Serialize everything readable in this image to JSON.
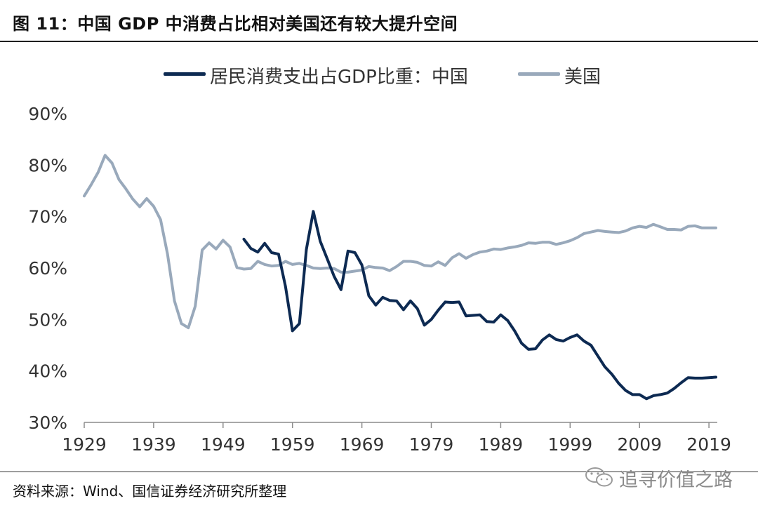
{
  "header": {
    "title": "图 11：中国 GDP 中消费占比相对美国还有较大提升空间"
  },
  "footer": {
    "source": "资料来源：Wind、国信证券经济研究所整理",
    "watermark": "追寻价值之路"
  },
  "chart_data": {
    "type": "line",
    "title": "",
    "xlabel": "",
    "ylabel": "",
    "xlim": [
      1929,
      2020
    ],
    "ylim": [
      30,
      90
    ],
    "grid": false,
    "legend_position": "top",
    "x_ticks": [
      "1929",
      "1939",
      "1949",
      "1959",
      "1969",
      "1979",
      "1989",
      "1999",
      "2009",
      "2019"
    ],
    "y_ticks": [
      "30%",
      "40%",
      "50%",
      "60%",
      "70%",
      "80%",
      "90%"
    ],
    "series": [
      {
        "name": "居民消费支出占GDP比重：中国",
        "color": "#0d2a52",
        "x": [
          1952,
          1953,
          1954,
          1955,
          1956,
          1957,
          1958,
          1959,
          1960,
          1961,
          1962,
          1963,
          1964,
          1965,
          1966,
          1967,
          1968,
          1969,
          1970,
          1971,
          1972,
          1973,
          1974,
          1975,
          1976,
          1977,
          1978,
          1979,
          1980,
          1981,
          1982,
          1983,
          1984,
          1985,
          1986,
          1987,
          1988,
          1989,
          1990,
          1991,
          1992,
          1993,
          1994,
          1995,
          1996,
          1997,
          1998,
          1999,
          2000,
          2001,
          2002,
          2003,
          2004,
          2005,
          2006,
          2007,
          2008,
          2009,
          2010,
          2011,
          2012,
          2013,
          2014,
          2015,
          2016,
          2017,
          2018,
          2019,
          2020
        ],
        "values": [
          65.6,
          63.8,
          63.1,
          64.8,
          63.0,
          62.7,
          56.4,
          47.8,
          49.2,
          63.6,
          71.0,
          65.2,
          61.8,
          58.4,
          55.8,
          63.3,
          63.0,
          60.6,
          54.6,
          52.8,
          54.3,
          53.7,
          53.6,
          51.9,
          53.6,
          52.1,
          48.9,
          50.0,
          51.8,
          53.4,
          53.3,
          53.4,
          50.7,
          50.8,
          50.9,
          49.6,
          49.5,
          50.9,
          49.8,
          47.8,
          45.4,
          44.2,
          44.3,
          46.0,
          47.0,
          46.1,
          45.8,
          46.5,
          47.0,
          45.8,
          45.0,
          42.9,
          40.8,
          39.4,
          37.6,
          36.2,
          35.4,
          35.4,
          34.6,
          35.2,
          35.4,
          35.7,
          36.6,
          37.7,
          38.7,
          38.6,
          38.6,
          38.7,
          38.8
        ]
      },
      {
        "name": "美国",
        "color": "#99a9bb",
        "x": [
          1929,
          1930,
          1931,
          1932,
          1933,
          1934,
          1935,
          1936,
          1937,
          1938,
          1939,
          1940,
          1941,
          1942,
          1943,
          1944,
          1945,
          1946,
          1947,
          1948,
          1949,
          1950,
          1951,
          1952,
          1953,
          1954,
          1955,
          1956,
          1957,
          1958,
          1959,
          1960,
          1961,
          1962,
          1963,
          1964,
          1965,
          1966,
          1967,
          1968,
          1969,
          1970,
          1971,
          1972,
          1973,
          1974,
          1975,
          1976,
          1977,
          1978,
          1979,
          1980,
          1981,
          1982,
          1983,
          1984,
          1985,
          1986,
          1987,
          1988,
          1989,
          1990,
          1991,
          1992,
          1993,
          1994,
          1995,
          1996,
          1997,
          1998,
          1999,
          2000,
          2001,
          2002,
          2003,
          2004,
          2005,
          2006,
          2007,
          2008,
          2009,
          2010,
          2011,
          2012,
          2013,
          2014,
          2015,
          2016,
          2017,
          2018,
          2019,
          2020
        ],
        "values": [
          74.0,
          76.2,
          78.6,
          81.9,
          80.4,
          77.2,
          75.4,
          73.4,
          71.9,
          73.5,
          72.0,
          69.4,
          62.7,
          53.6,
          49.2,
          48.4,
          52.6,
          63.5,
          64.9,
          63.7,
          65.4,
          64.1,
          60.1,
          59.8,
          59.9,
          61.3,
          60.7,
          60.4,
          60.5,
          61.3,
          60.7,
          60.9,
          60.5,
          60.0,
          59.9,
          60.0,
          59.9,
          59.2,
          59.2,
          59.4,
          59.6,
          60.3,
          60.1,
          60.0,
          59.5,
          60.3,
          61.3,
          61.3,
          61.1,
          60.5,
          60.4,
          61.2,
          60.5,
          62.0,
          62.8,
          61.9,
          62.6,
          63.1,
          63.3,
          63.7,
          63.6,
          63.9,
          64.1,
          64.4,
          64.9,
          64.8,
          65.0,
          65.0,
          64.6,
          64.9,
          65.3,
          65.9,
          66.7,
          67.0,
          67.3,
          67.1,
          67.0,
          66.9,
          67.2,
          67.8,
          68.1,
          67.9,
          68.5,
          68.0,
          67.5,
          67.5,
          67.4,
          68.1,
          68.2,
          67.8,
          67.8,
          67.8
        ]
      }
    ]
  }
}
